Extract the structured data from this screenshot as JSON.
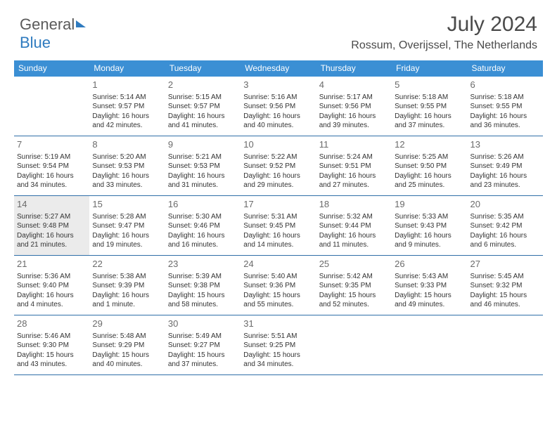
{
  "brand": {
    "part1": "General",
    "part2": "Blue"
  },
  "title": {
    "month": "July 2024",
    "location": "Rossum, Overijssel, The Netherlands"
  },
  "colors": {
    "header_bg": "#3b8fd4",
    "header_text": "#ffffff",
    "border": "#2f6fa8",
    "logo_gray": "#5a5a5a",
    "logo_blue": "#2f7bbf",
    "shaded_bg": "#ebebeb"
  },
  "weekdays": [
    "Sunday",
    "Monday",
    "Tuesday",
    "Wednesday",
    "Thursday",
    "Friday",
    "Saturday"
  ],
  "layout": {
    "first_weekday_index": 1,
    "days_in_month": 31,
    "shaded_days": [
      14
    ]
  },
  "days": {
    "1": {
      "sunrise": "5:14 AM",
      "sunset": "9:57 PM",
      "daylight": "16 hours and 42 minutes."
    },
    "2": {
      "sunrise": "5:15 AM",
      "sunset": "9:57 PM",
      "daylight": "16 hours and 41 minutes."
    },
    "3": {
      "sunrise": "5:16 AM",
      "sunset": "9:56 PM",
      "daylight": "16 hours and 40 minutes."
    },
    "4": {
      "sunrise": "5:17 AM",
      "sunset": "9:56 PM",
      "daylight": "16 hours and 39 minutes."
    },
    "5": {
      "sunrise": "5:18 AM",
      "sunset": "9:55 PM",
      "daylight": "16 hours and 37 minutes."
    },
    "6": {
      "sunrise": "5:18 AM",
      "sunset": "9:55 PM",
      "daylight": "16 hours and 36 minutes."
    },
    "7": {
      "sunrise": "5:19 AM",
      "sunset": "9:54 PM",
      "daylight": "16 hours and 34 minutes."
    },
    "8": {
      "sunrise": "5:20 AM",
      "sunset": "9:53 PM",
      "daylight": "16 hours and 33 minutes."
    },
    "9": {
      "sunrise": "5:21 AM",
      "sunset": "9:53 PM",
      "daylight": "16 hours and 31 minutes."
    },
    "10": {
      "sunrise": "5:22 AM",
      "sunset": "9:52 PM",
      "daylight": "16 hours and 29 minutes."
    },
    "11": {
      "sunrise": "5:24 AM",
      "sunset": "9:51 PM",
      "daylight": "16 hours and 27 minutes."
    },
    "12": {
      "sunrise": "5:25 AM",
      "sunset": "9:50 PM",
      "daylight": "16 hours and 25 minutes."
    },
    "13": {
      "sunrise": "5:26 AM",
      "sunset": "9:49 PM",
      "daylight": "16 hours and 23 minutes."
    },
    "14": {
      "sunrise": "5:27 AM",
      "sunset": "9:48 PM",
      "daylight": "16 hours and 21 minutes."
    },
    "15": {
      "sunrise": "5:28 AM",
      "sunset": "9:47 PM",
      "daylight": "16 hours and 19 minutes."
    },
    "16": {
      "sunrise": "5:30 AM",
      "sunset": "9:46 PM",
      "daylight": "16 hours and 16 minutes."
    },
    "17": {
      "sunrise": "5:31 AM",
      "sunset": "9:45 PM",
      "daylight": "16 hours and 14 minutes."
    },
    "18": {
      "sunrise": "5:32 AM",
      "sunset": "9:44 PM",
      "daylight": "16 hours and 11 minutes."
    },
    "19": {
      "sunrise": "5:33 AM",
      "sunset": "9:43 PM",
      "daylight": "16 hours and 9 minutes."
    },
    "20": {
      "sunrise": "5:35 AM",
      "sunset": "9:42 PM",
      "daylight": "16 hours and 6 minutes."
    },
    "21": {
      "sunrise": "5:36 AM",
      "sunset": "9:40 PM",
      "daylight": "16 hours and 4 minutes."
    },
    "22": {
      "sunrise": "5:38 AM",
      "sunset": "9:39 PM",
      "daylight": "16 hours and 1 minute."
    },
    "23": {
      "sunrise": "5:39 AM",
      "sunset": "9:38 PM",
      "daylight": "15 hours and 58 minutes."
    },
    "24": {
      "sunrise": "5:40 AM",
      "sunset": "9:36 PM",
      "daylight": "15 hours and 55 minutes."
    },
    "25": {
      "sunrise": "5:42 AM",
      "sunset": "9:35 PM",
      "daylight": "15 hours and 52 minutes."
    },
    "26": {
      "sunrise": "5:43 AM",
      "sunset": "9:33 PM",
      "daylight": "15 hours and 49 minutes."
    },
    "27": {
      "sunrise": "5:45 AM",
      "sunset": "9:32 PM",
      "daylight": "15 hours and 46 minutes."
    },
    "28": {
      "sunrise": "5:46 AM",
      "sunset": "9:30 PM",
      "daylight": "15 hours and 43 minutes."
    },
    "29": {
      "sunrise": "5:48 AM",
      "sunset": "9:29 PM",
      "daylight": "15 hours and 40 minutes."
    },
    "30": {
      "sunrise": "5:49 AM",
      "sunset": "9:27 PM",
      "daylight": "15 hours and 37 minutes."
    },
    "31": {
      "sunrise": "5:51 AM",
      "sunset": "9:25 PM",
      "daylight": "15 hours and 34 minutes."
    }
  },
  "labels": {
    "sunrise": "Sunrise:",
    "sunset": "Sunset:",
    "daylight": "Daylight:"
  }
}
